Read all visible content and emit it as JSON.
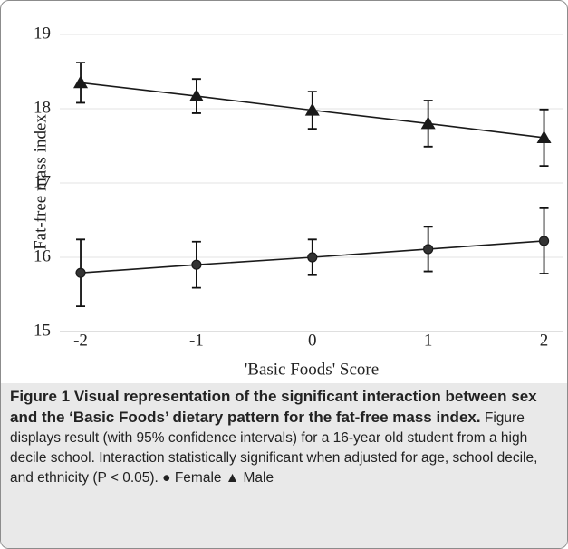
{
  "chart_data": {
    "type": "line",
    "x_label": "'Basic Foods' Score",
    "y_label": "Fat-free mass index",
    "x": [
      -2,
      -1,
      0,
      1,
      2
    ],
    "xlim": [
      -2.18,
      2.16
    ],
    "xticks": [
      -2,
      -1,
      0,
      1,
      2
    ],
    "ylim": [
      15,
      19
    ],
    "yticks": [
      15,
      16,
      17,
      18,
      19
    ],
    "grid": true,
    "series": [
      {
        "name": "Female",
        "color": "#1a1a1a",
        "marker": "circle",
        "values": [
          15.79,
          15.9,
          16.0,
          16.11,
          16.22
        ],
        "errors": [
          0.45,
          0.31,
          0.24,
          0.3,
          0.44
        ]
      },
      {
        "name": "Male",
        "color": "#1a1a1a",
        "marker": "triangle",
        "values": [
          18.35,
          18.17,
          17.98,
          17.8,
          17.61
        ],
        "errors": [
          0.27,
          0.23,
          0.25,
          0.31,
          0.38
        ]
      }
    ],
    "caption": {
      "title": "Figure 1 Visual representation of the significant interaction between sex and the ‘Basic Foods’ dietary pattern for the fat-free mass index.",
      "text": "Figure displays result (with 95% confidence intervals) for a 16-year old student from a high decile school. Interaction statistically significant when adjusted for age, school decile, and ethnicity (P < 0.05)."
    }
  }
}
